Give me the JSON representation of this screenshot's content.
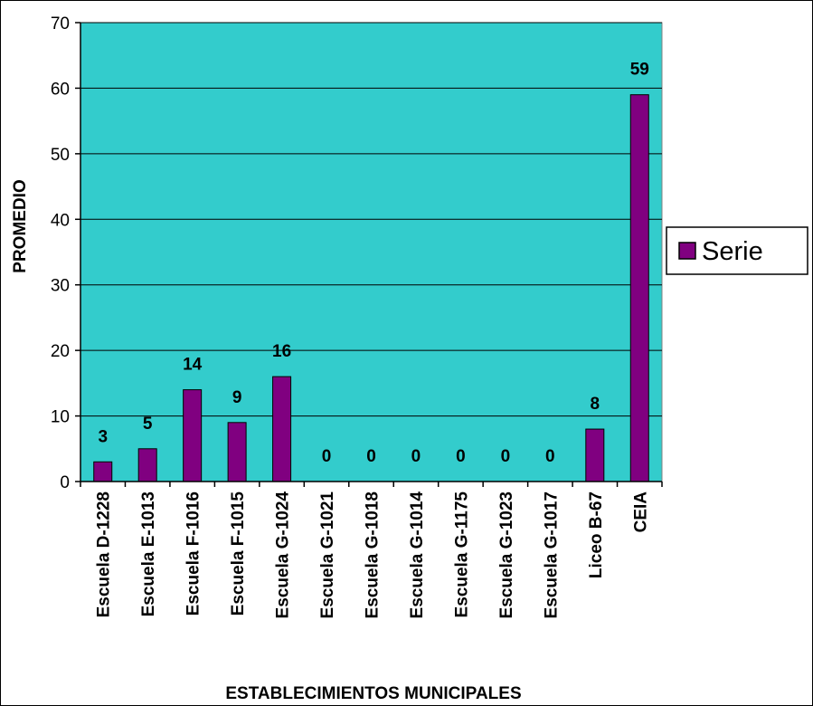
{
  "chart_data": {
    "type": "bar",
    "categories": [
      "Escuela D-1228",
      "Escuela E-1013",
      "Escuela F-1016",
      "Escuela F-1015",
      "Escuela G-1024",
      "Escuela G-1021",
      "Escuela G-1018",
      "Escuela G-1014",
      "Escuela G-1175",
      "Escuela G-1023",
      "Escuela G-1017",
      "Liceo B-67",
      "CEIA"
    ],
    "series": [
      {
        "name": "Serie",
        "values": [
          3,
          5,
          14,
          9,
          16,
          0,
          0,
          0,
          0,
          0,
          0,
          8,
          59
        ],
        "color": "#800080"
      }
    ],
    "data_labels": [
      "3",
      "5",
      "14",
      "9",
      "16",
      "0",
      "0",
      "0",
      "0",
      "0",
      "0",
      "8",
      "59"
    ],
    "title": "",
    "xlabel": "ESTABLECIMIENTOS MUNICIPALES",
    "ylabel": "PROMEDIO",
    "ylim": [
      0,
      70
    ],
    "yticks": [
      0,
      10,
      20,
      30,
      40,
      50,
      60,
      70
    ],
    "grid": true,
    "plot_background": "#33CCCC",
    "legend_position": "right"
  }
}
